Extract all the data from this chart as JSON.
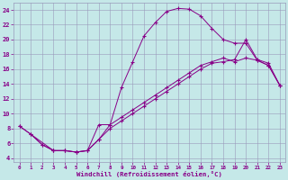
{
  "xlabel": "Windchill (Refroidissement éolien,°C)",
  "background_color": "#c5e8e8",
  "grid_color": "#9999bb",
  "line_color": "#880088",
  "xlim": [
    -0.5,
    23.5
  ],
  "ylim": [
    3.5,
    25.0
  ],
  "xticks": [
    0,
    1,
    2,
    3,
    4,
    5,
    6,
    7,
    8,
    9,
    10,
    11,
    12,
    13,
    14,
    15,
    16,
    17,
    18,
    19,
    20,
    21,
    22,
    23
  ],
  "yticks": [
    4,
    6,
    8,
    10,
    12,
    14,
    16,
    18,
    20,
    22,
    24
  ],
  "line1_x": [
    1,
    2,
    3,
    4,
    5,
    6,
    7,
    8,
    9,
    10,
    11,
    12,
    13,
    14,
    15,
    16,
    17,
    18,
    19,
    20,
    21,
    22,
    23
  ],
  "line1_y": [
    7.2,
    5.8,
    5.0,
    5.0,
    4.8,
    5.0,
    8.5,
    8.5,
    13.5,
    17.0,
    20.5,
    22.3,
    23.8,
    24.2,
    24.1,
    23.2,
    21.5,
    20.0,
    19.5,
    19.5,
    17.2,
    16.5,
    13.8
  ],
  "line2_x": [
    0,
    1,
    2,
    3,
    4,
    5,
    6,
    7,
    8,
    9,
    10,
    11,
    12,
    13,
    14,
    15,
    16,
    17,
    18,
    19,
    20,
    21,
    22,
    23
  ],
  "line2_y": [
    8.3,
    7.2,
    5.8,
    5.0,
    5.0,
    4.8,
    5.0,
    6.5,
    8.5,
    9.5,
    10.5,
    11.5,
    12.5,
    13.5,
    14.5,
    15.5,
    16.5,
    17.0,
    17.5,
    17.0,
    17.5,
    17.2,
    16.5,
    13.8
  ],
  "line3_x": [
    0,
    3,
    4,
    5,
    6,
    7,
    8,
    9,
    10,
    11,
    12,
    13,
    14,
    15,
    16,
    17,
    18,
    19,
    20,
    21,
    22,
    23
  ],
  "line3_y": [
    8.3,
    5.0,
    5.0,
    4.8,
    5.0,
    6.5,
    8.0,
    9.0,
    10.0,
    11.0,
    12.0,
    13.0,
    14.0,
    15.0,
    16.0,
    16.8,
    17.0,
    17.3,
    20.0,
    17.3,
    16.8,
    13.8
  ]
}
